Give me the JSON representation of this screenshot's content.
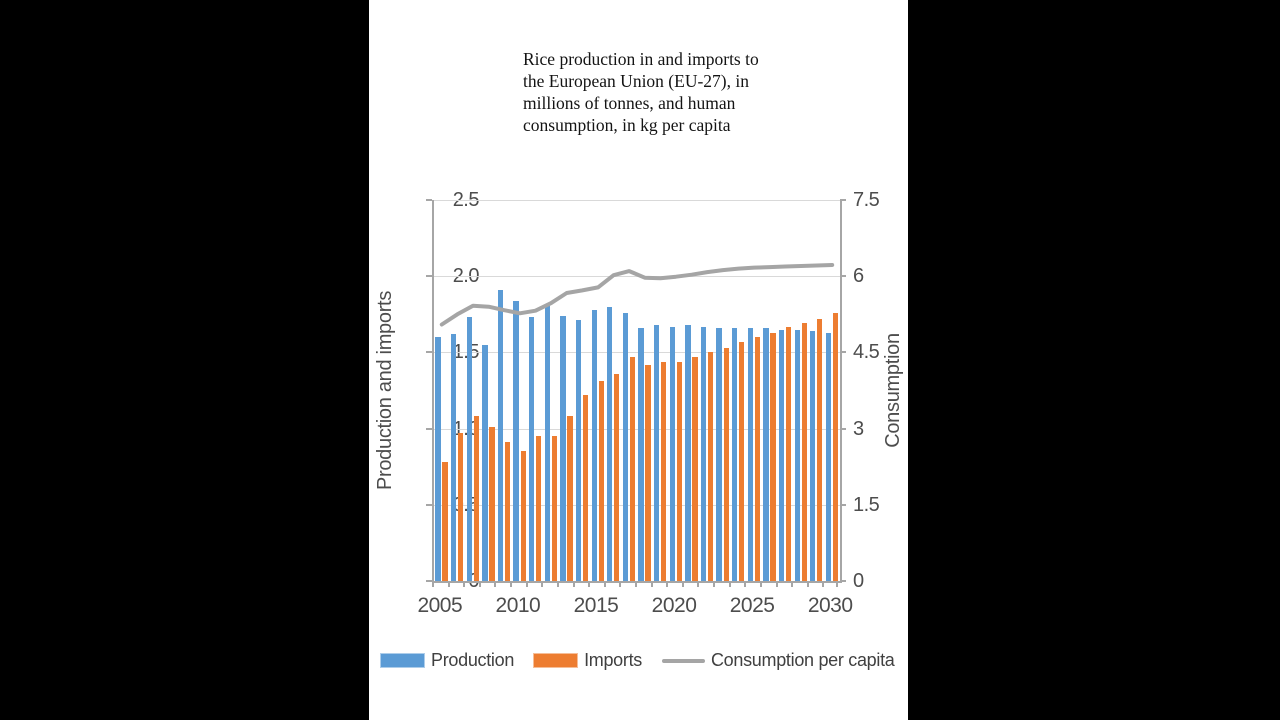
{
  "frame": {
    "letterbox_color": "#000000",
    "content_background": "#ffffff"
  },
  "chart_data": {
    "type": "bar",
    "subtype": "combo-bar-line-dual-axis",
    "title": "Rice production in and imports to\nthe European Union (EU-27), in\nmillions of tonnes, and human\nconsumption, in kg per capita",
    "categories": [
      2005,
      2006,
      2007,
      2008,
      2009,
      2010,
      2011,
      2012,
      2013,
      2014,
      2015,
      2016,
      2017,
      2018,
      2019,
      2020,
      2021,
      2022,
      2023,
      2024,
      2025,
      2026,
      2027,
      2028,
      2029,
      2030
    ],
    "series": [
      {
        "name": "Production",
        "type": "bar",
        "axis": "left",
        "color": "#5B9BD5",
        "values": [
          1.6,
          1.62,
          1.73,
          1.55,
          1.91,
          1.84,
          1.73,
          1.82,
          1.74,
          1.71,
          1.78,
          1.8,
          1.76,
          1.66,
          1.68,
          1.67,
          1.68,
          1.67,
          1.66,
          1.66,
          1.66,
          1.66,
          1.65,
          1.65,
          1.64,
          1.63
        ]
      },
      {
        "name": "Imports",
        "type": "bar",
        "axis": "left",
        "color": "#ED7D31",
        "values": [
          0.78,
          0.97,
          1.08,
          1.01,
          0.91,
          0.85,
          0.95,
          0.95,
          1.08,
          1.22,
          1.31,
          1.36,
          1.47,
          1.42,
          1.44,
          1.44,
          1.47,
          1.5,
          1.53,
          1.57,
          1.6,
          1.63,
          1.67,
          1.69,
          1.72,
          1.76
        ]
      },
      {
        "name": "Consumption per capita",
        "type": "line",
        "axis": "right",
        "color": "#A5A5A5",
        "values": [
          5.05,
          5.25,
          5.42,
          5.4,
          5.33,
          5.27,
          5.32,
          5.47,
          5.67,
          5.72,
          5.78,
          6.02,
          6.1,
          5.97,
          5.96,
          5.99,
          6.03,
          6.08,
          6.12,
          6.15,
          6.17,
          6.18,
          6.19,
          6.2,
          6.21,
          6.22
        ]
      }
    ],
    "left_axis": {
      "title": "Production and imports",
      "min": 0,
      "max": 2.5,
      "ticks": [
        "0",
        "0.5",
        "1.0",
        "1.5",
        "2.0",
        "2.5"
      ]
    },
    "right_axis": {
      "title": "Consumption",
      "min": 0,
      "max": 7.5,
      "ticks": [
        "0",
        "1.5",
        "3",
        "4.5",
        "6",
        "7.5"
      ]
    },
    "x_axis": {
      "labeled_years": [
        "2005",
        "2010",
        "2015",
        "2020",
        "2025",
        "2030"
      ]
    },
    "grid": true,
    "legend_position": "bottom"
  },
  "legend": {
    "items": [
      {
        "label": "Production",
        "swatch": "rect",
        "color": "#5B9BD5"
      },
      {
        "label": "Imports",
        "swatch": "rect",
        "color": "#ED7D31"
      },
      {
        "label": "Consumption per capita",
        "swatch": "line",
        "color": "#A5A5A5"
      }
    ]
  },
  "colors": {
    "gridline": "#D9D9D9",
    "axis_line": "#A6A6A6",
    "tick_text": "#4D4D4D",
    "title_text": "#141414"
  }
}
